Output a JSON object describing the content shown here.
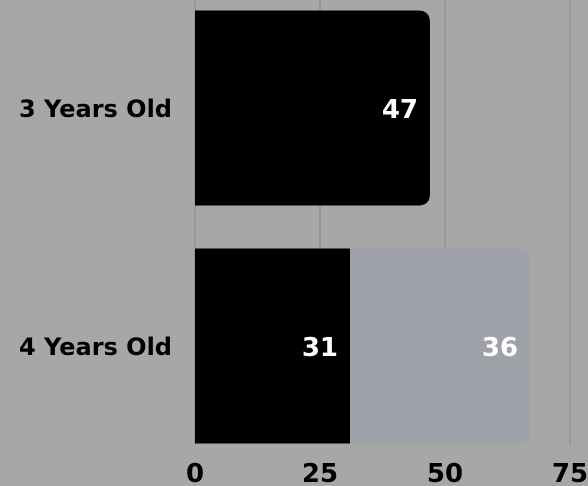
{
  "chart_data": {
    "type": "bar",
    "orientation": "horizontal",
    "stacked": true,
    "categories": [
      "3 Years Old",
      "4 Years Old"
    ],
    "series": [
      {
        "values": [
          47,
          31
        ],
        "color": "#000000"
      },
      {
        "values": [
          null,
          36
        ],
        "color": "#9ea1a8"
      }
    ],
    "data_labels": [
      {
        "category": "3 Years Old",
        "labels": [
          "47"
        ]
      },
      {
        "category": "4 Years Old",
        "labels": [
          "31",
          "36"
        ]
      }
    ],
    "xlim": [
      0,
      75
    ],
    "xticks": [
      0,
      25,
      50,
      75
    ],
    "grid": "vertical",
    "gridline_color": "#8a8a8a",
    "background": "#a7a7a7",
    "title": "",
    "xlabel": "",
    "ylabel": ""
  }
}
